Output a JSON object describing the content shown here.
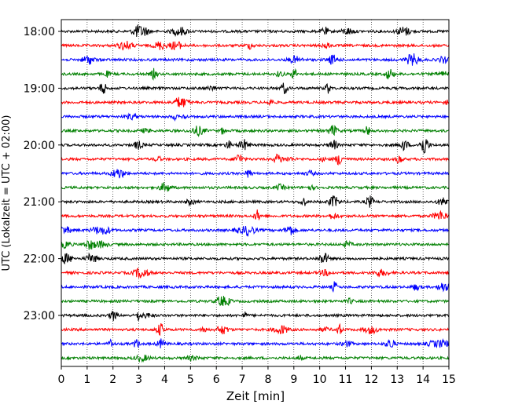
{
  "chart_data": {
    "type": "line",
    "title": "",
    "xlabel": "Zeit  [min]",
    "ylabel": "UTC (Lokalzeit = UTC + 02:00)",
    "xlim": [
      0,
      15
    ],
    "x_ticks": [
      0,
      1,
      2,
      3,
      4,
      5,
      6,
      7,
      8,
      9,
      10,
      11,
      12,
      13,
      14,
      15
    ],
    "x_grid": "dotted vertical lines at each minute",
    "y_ticks": [
      "18:00",
      "19:00",
      "20:00",
      "21:00",
      "22:00",
      "23:00"
    ],
    "trace_interval_min": 15,
    "series": [
      {
        "start": "18:00",
        "color": "#000000"
      },
      {
        "start": "18:15",
        "color": "#ff0000"
      },
      {
        "start": "18:30",
        "color": "#0000ff"
      },
      {
        "start": "18:45",
        "color": "#008000"
      },
      {
        "start": "19:00",
        "color": "#000000"
      },
      {
        "start": "19:15",
        "color": "#ff0000"
      },
      {
        "start": "19:30",
        "color": "#0000ff"
      },
      {
        "start": "19:45",
        "color": "#008000"
      },
      {
        "start": "20:00",
        "color": "#000000"
      },
      {
        "start": "20:15",
        "color": "#ff0000"
      },
      {
        "start": "20:30",
        "color": "#0000ff"
      },
      {
        "start": "20:45",
        "color": "#008000"
      },
      {
        "start": "21:00",
        "color": "#000000"
      },
      {
        "start": "21:15",
        "color": "#ff0000"
      },
      {
        "start": "21:30",
        "color": "#0000ff"
      },
      {
        "start": "21:45",
        "color": "#008000"
      },
      {
        "start": "22:00",
        "color": "#000000"
      },
      {
        "start": "22:15",
        "color": "#ff0000"
      },
      {
        "start": "22:30",
        "color": "#0000ff"
      },
      {
        "start": "22:45",
        "color": "#008000"
      },
      {
        "start": "23:00",
        "color": "#000000"
      },
      {
        "start": "23:15",
        "color": "#ff0000"
      },
      {
        "start": "23:30",
        "color": "#0000ff"
      },
      {
        "start": "23:45",
        "color": "#008000"
      }
    ]
  }
}
